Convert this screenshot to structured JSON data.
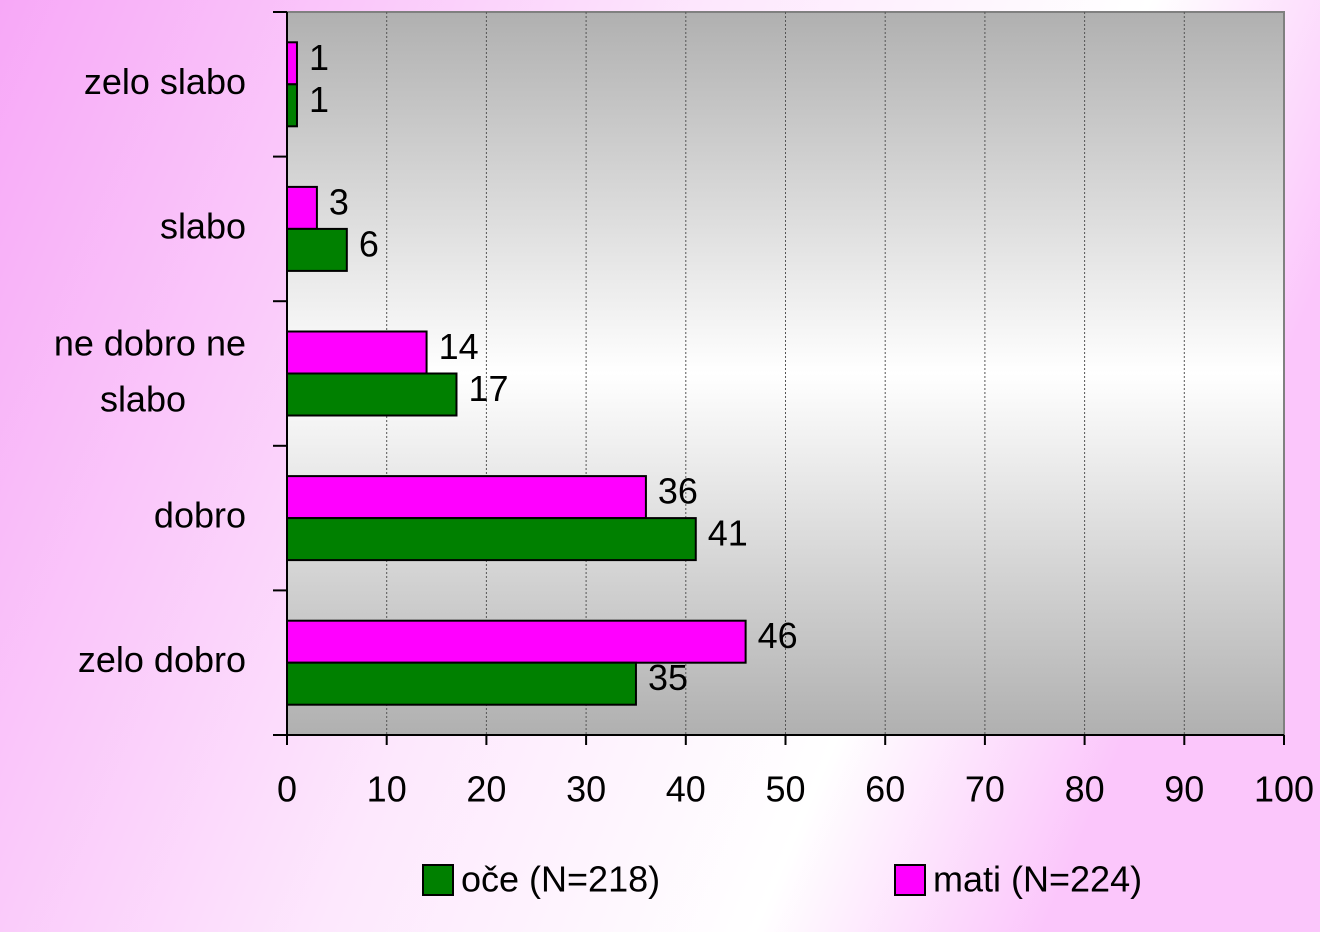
{
  "chart_data": {
    "type": "hbar",
    "categories": [
      "zelo slabo",
      "slabo",
      "ne dobro ne slabo",
      "dobro",
      "zelo dobro"
    ],
    "series": [
      {
        "name": "oče (N=218)",
        "color": "#008000",
        "values": [
          1,
          6,
          17,
          41,
          35
        ]
      },
      {
        "name": "mati (N=224)",
        "color": "#ff00ff",
        "values": [
          1,
          3,
          14,
          36,
          46
        ]
      }
    ],
    "xlim": [
      0,
      100
    ],
    "xticks": [
      0,
      10,
      20,
      30,
      40,
      50,
      60,
      70,
      80,
      90,
      100
    ],
    "grid": true,
    "legend": "bottom"
  }
}
